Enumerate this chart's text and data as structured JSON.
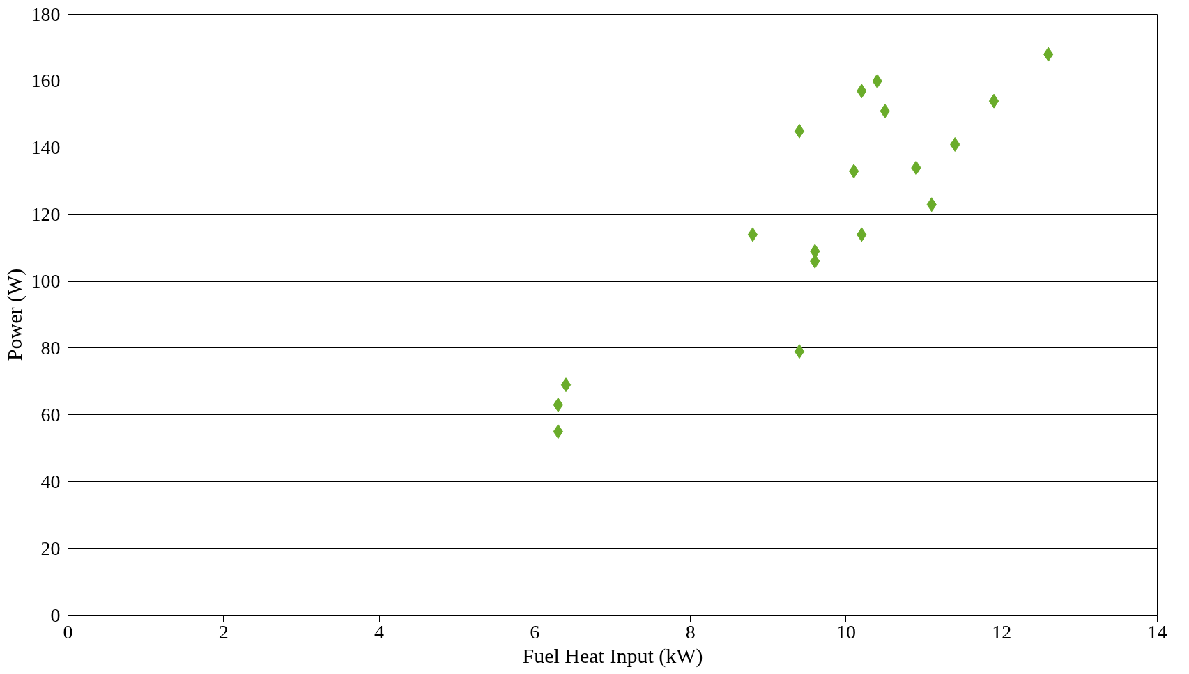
{
  "chart_data": {
    "type": "scatter",
    "xlabel": "Fuel Heat Input (kW)",
    "ylabel": "Power (W)",
    "x": [
      6.3,
      6.3,
      6.4,
      8.8,
      9.4,
      9.4,
      9.6,
      9.6,
      10.1,
      10.2,
      10.2,
      10.4,
      10.5,
      10.9,
      11.1,
      11.4,
      11.9,
      12.6
    ],
    "series": [
      {
        "color": "#6aac2a",
        "values": [
          55,
          63,
          69,
          114,
          145,
          79,
          109,
          106,
          133,
          157,
          114,
          160,
          151,
          134,
          123,
          141,
          154,
          168
        ]
      }
    ],
    "xlim": [
      0,
      14
    ],
    "xticks": [
      0,
      2,
      4,
      6,
      8,
      10,
      12,
      14
    ],
    "ylim": [
      0,
      180
    ],
    "yticks": [
      0,
      20,
      40,
      60,
      80,
      100,
      120,
      140,
      160,
      180
    ],
    "grid": "y",
    "marker": "diamond"
  }
}
